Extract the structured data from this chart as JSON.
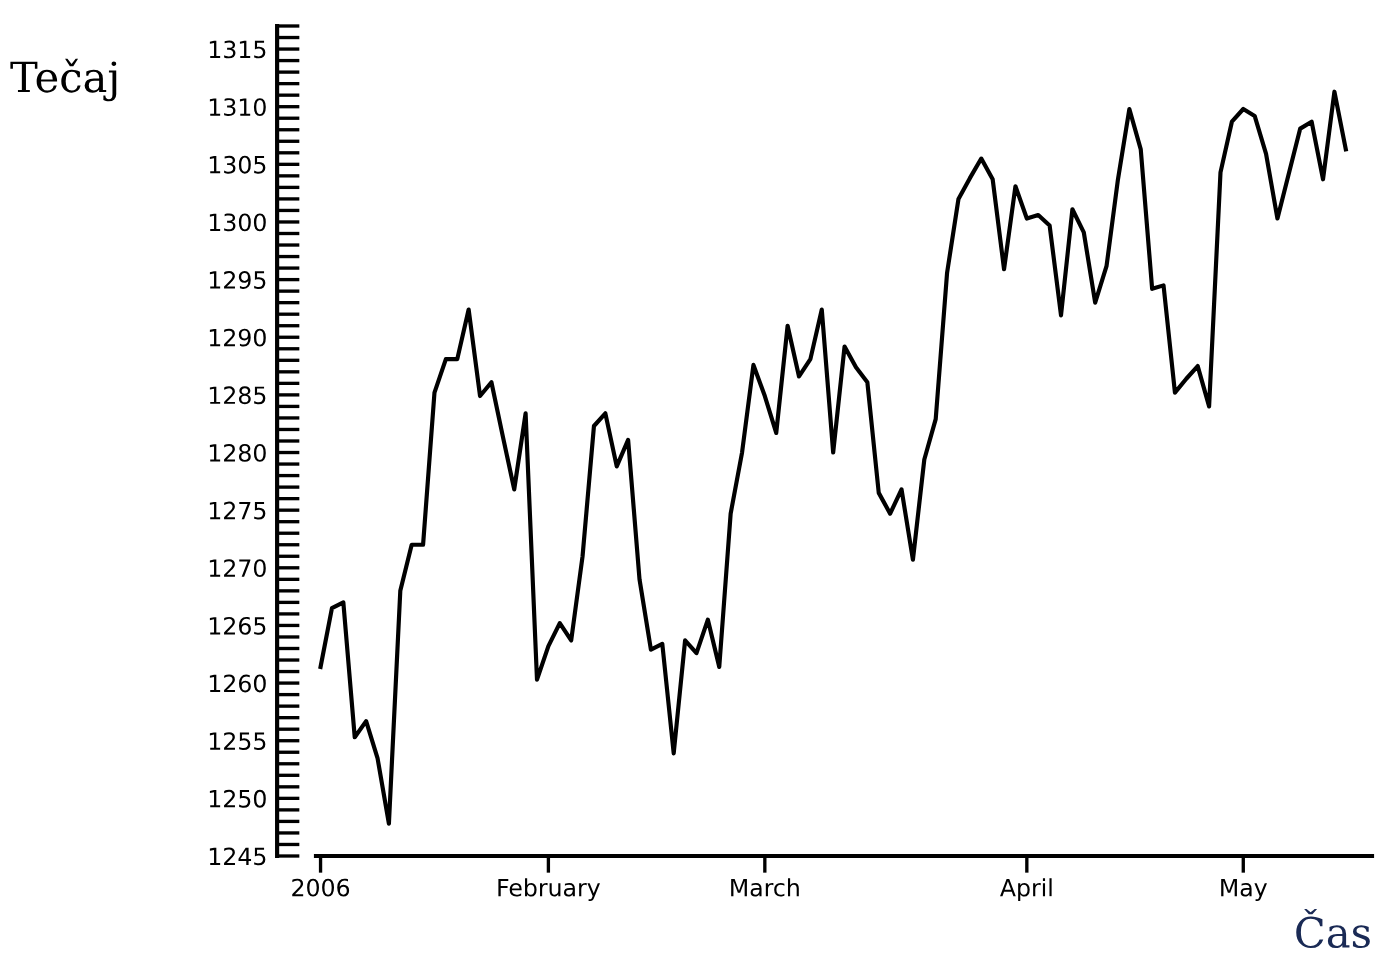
{
  "chart_data": {
    "type": "line",
    "ylabel": "Tečaj",
    "xlabel": "Čas",
    "categories": [
      "2006",
      null,
      null,
      null,
      null,
      null,
      null,
      null,
      null,
      null,
      null,
      null,
      null,
      null,
      null,
      null,
      null,
      null,
      null,
      null,
      "February",
      null,
      null,
      null,
      null,
      null,
      null,
      null,
      null,
      null,
      null,
      null,
      null,
      null,
      null,
      null,
      null,
      null,
      null,
      "March",
      null,
      null,
      null,
      null,
      null,
      null,
      null,
      null,
      null,
      null,
      null,
      null,
      null,
      null,
      null,
      null,
      null,
      null,
      null,
      null,
      null,
      null,
      "April",
      null,
      null,
      null,
      null,
      null,
      null,
      null,
      null,
      null,
      null,
      null,
      null,
      null,
      null,
      null,
      null,
      null,
      null,
      "May",
      null,
      null,
      null,
      null,
      null,
      null,
      null,
      null,
      null
    ],
    "series": [
      {
        "color": "#000000",
        "values": [
          1261.4,
          1266.5,
          1267.0,
          1255.3,
          1256.7,
          1253.5,
          1247.8,
          1268.0,
          1272.0,
          1272.0,
          1285.2,
          1288.1,
          1288.1,
          1292.4,
          1284.9,
          1286.1,
          1281.4,
          1276.8,
          1283.4,
          1260.3,
          1263.2,
          1265.2,
          1263.7,
          1271.0,
          1282.3,
          1283.4,
          1278.8,
          1281.1,
          1269.0,
          1262.9,
          1263.4,
          1253.9,
          1263.7,
          1262.6,
          1265.5,
          1261.4,
          1274.7,
          1280.0,
          1287.6,
          1284.9,
          1281.7,
          1291.0,
          1286.6,
          1288.1,
          1292.4,
          1280.0,
          1289.2,
          1287.4,
          1286.1,
          1276.5,
          1274.7,
          1276.8,
          1270.7,
          1279.4,
          1282.9,
          1295.6,
          1302.0,
          1303.8,
          1305.5,
          1303.7,
          1295.9,
          1303.1,
          1300.3,
          1300.6,
          1299.7,
          1291.9,
          1301.1,
          1299.1,
          1293.0,
          1296.2,
          1303.7,
          1309.8,
          1306.3,
          1294.2,
          1294.5,
          1285.2,
          1286.4,
          1287.5,
          1284.0,
          1304.3,
          1308.7,
          1309.8,
          1309.2,
          1305.9,
          1300.3,
          1304.2,
          1308.1,
          1308.7,
          1303.7,
          1311.3,
          1306.3
        ]
      }
    ],
    "ylim": [
      1245,
      1317
    ],
    "yticks": [
      1245,
      {
        "value": 1246,
        "label": null
      },
      {
        "value": 1247,
        "label": null
      },
      {
        "value": 1248,
        "label": null
      },
      {
        "value": 1249,
        "label": null
      },
      1250,
      {
        "value": 1251,
        "label": null
      },
      {
        "value": 1252,
        "label": null
      },
      {
        "value": 1253,
        "label": null
      },
      {
        "value": 1254,
        "label": null
      },
      1255,
      {
        "value": 1256,
        "label": null
      },
      {
        "value": 1257,
        "label": null
      },
      {
        "value": 1258,
        "label": null
      },
      {
        "value": 1259,
        "label": null
      },
      1260,
      {
        "value": 1261,
        "label": null
      },
      {
        "value": 1262,
        "label": null
      },
      {
        "value": 1263,
        "label": null
      },
      {
        "value": 1264,
        "label": null
      },
      1265,
      {
        "value": 1266,
        "label": null
      },
      {
        "value": 1267,
        "label": null
      },
      {
        "value": 1268,
        "label": null
      },
      {
        "value": 1269,
        "label": null
      },
      1270,
      {
        "value": 1271,
        "label": null
      },
      {
        "value": 1272,
        "label": null
      },
      {
        "value": 1273,
        "label": null
      },
      {
        "value": 1274,
        "label": null
      },
      1275,
      {
        "value": 1276,
        "label": null
      },
      {
        "value": 1277,
        "label": null
      },
      {
        "value": 1278,
        "label": null
      },
      {
        "value": 1279,
        "label": null
      },
      1280,
      {
        "value": 1281,
        "label": null
      },
      {
        "value": 1282,
        "label": null
      },
      {
        "value": 1283,
        "label": null
      },
      {
        "value": 1284,
        "label": null
      },
      1285,
      {
        "value": 1286,
        "label": null
      },
      {
        "value": 1287,
        "label": null
      },
      {
        "value": 1288,
        "label": null
      },
      {
        "value": 1289,
        "label": null
      },
      1290,
      {
        "value": 1291,
        "label": null
      },
      {
        "value": 1292,
        "label": null
      },
      {
        "value": 1293,
        "label": null
      },
      {
        "value": 1294,
        "label": null
      },
      1295,
      {
        "value": 1296,
        "label": null
      },
      {
        "value": 1297,
        "label": null
      },
      {
        "value": 1298,
        "label": null
      },
      {
        "value": 1299,
        "label": null
      },
      1300,
      {
        "value": 1301,
        "label": null
      },
      {
        "value": 1302,
        "label": null
      },
      {
        "value": 1303,
        "label": null
      },
      {
        "value": 1304,
        "label": null
      },
      1305,
      {
        "value": 1306,
        "label": null
      },
      {
        "value": 1307,
        "label": null
      },
      {
        "value": 1308,
        "label": null
      },
      {
        "value": 1309,
        "label": null
      },
      1310,
      {
        "value": 1311,
        "label": null
      },
      {
        "value": 1312,
        "label": null
      },
      {
        "value": 1313,
        "label": null
      },
      {
        "value": 1314,
        "label": null
      },
      1315,
      {
        "value": 1316,
        "label": null
      },
      {
        "value": 1317,
        "label": null
      }
    ],
    "grid": false,
    "legend": false,
    "marker": "none",
    "line_style": "solid"
  }
}
